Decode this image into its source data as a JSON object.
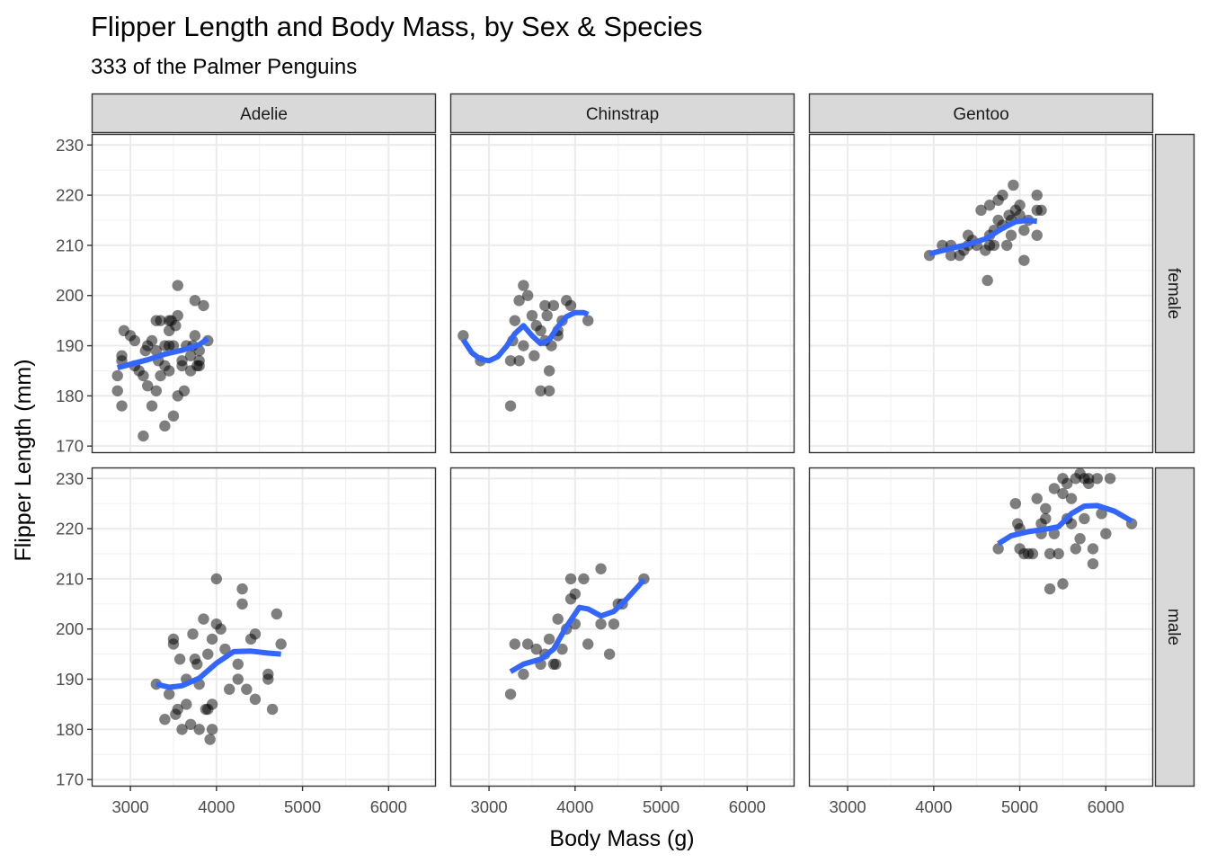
{
  "chart_data": {
    "type": "scatter",
    "title": "Flipper Length and Body Mass, by Sex & Species",
    "subtitle": "333 of the Palmer Penguins",
    "xlabel": "Body Mass (g)",
    "ylabel": "Flipper Length (mm)",
    "xlim": [
      2550,
      6550
    ],
    "ylim": [
      168.6,
      232.2
    ],
    "x_ticks": [
      3000,
      4000,
      5000,
      6000
    ],
    "y_ticks": [
      170,
      180,
      190,
      200,
      210,
      220,
      230
    ],
    "facet_columns": [
      "Adelie",
      "Chinstrap",
      "Gentoo"
    ],
    "facet_rows": [
      "female",
      "male"
    ],
    "point_color": "#000000",
    "smooth_color": "#3366ff",
    "strip_fill": "#d9d9d9",
    "grid": true,
    "panels": [
      {
        "species": "Adelie",
        "sex": "female",
        "points": [
          [
            2850,
            181
          ],
          [
            2850,
            184
          ],
          [
            2900,
            178
          ],
          [
            2900,
            188
          ],
          [
            2900,
            187
          ],
          [
            2925,
            193
          ],
          [
            3000,
            192
          ],
          [
            3050,
            191
          ],
          [
            3050,
            186
          ],
          [
            3100,
            185
          ],
          [
            3150,
            172
          ],
          [
            3150,
            184
          ],
          [
            3175,
            189
          ],
          [
            3200,
            190
          ],
          [
            3200,
            182
          ],
          [
            3250,
            191
          ],
          [
            3250,
            178
          ],
          [
            3300,
            195
          ],
          [
            3300,
            189
          ],
          [
            3300,
            181
          ],
          [
            3325,
            187
          ],
          [
            3350,
            195
          ],
          [
            3350,
            184
          ],
          [
            3400,
            186
          ],
          [
            3400,
            174
          ],
          [
            3400,
            190
          ],
          [
            3450,
            193
          ],
          [
            3450,
            185
          ],
          [
            3450,
            190
          ],
          [
            3450,
            195
          ],
          [
            3475,
            195
          ],
          [
            3500,
            176
          ],
          [
            3500,
            190
          ],
          [
            3525,
            194
          ],
          [
            3550,
            202
          ],
          [
            3550,
            180
          ],
          [
            3550,
            196
          ],
          [
            3600,
            186
          ],
          [
            3600,
            187
          ],
          [
            3625,
            181
          ],
          [
            3650,
            190
          ],
          [
            3700,
            185
          ],
          [
            3700,
            188
          ],
          [
            3725,
            190
          ],
          [
            3750,
            199
          ],
          [
            3750,
            192
          ],
          [
            3775,
            186
          ],
          [
            3800,
            187
          ],
          [
            3800,
            186
          ],
          [
            3800,
            189
          ],
          [
            3850,
            198
          ],
          [
            3900,
            191
          ]
        ],
        "smooth": [
          [
            2850,
            185.6
          ],
          [
            3000,
            186.3
          ],
          [
            3200,
            187.2
          ],
          [
            3400,
            188.3
          ],
          [
            3600,
            189.1
          ],
          [
            3800,
            190.2
          ],
          [
            3900,
            191.4
          ]
        ]
      },
      {
        "species": "Chinstrap",
        "sex": "female",
        "points": [
          [
            2700,
            192
          ],
          [
            2900,
            187
          ],
          [
            3250,
            187
          ],
          [
            3250,
            178
          ],
          [
            3275,
            191
          ],
          [
            3300,
            195
          ],
          [
            3350,
            199
          ],
          [
            3350,
            187
          ],
          [
            3400,
            202
          ],
          [
            3400,
            190
          ],
          [
            3450,
            200
          ],
          [
            3500,
            196
          ],
          [
            3525,
            188
          ],
          [
            3550,
            194
          ],
          [
            3600,
            193
          ],
          [
            3600,
            181
          ],
          [
            3650,
            191
          ],
          [
            3650,
            198
          ],
          [
            3675,
            196
          ],
          [
            3700,
            181
          ],
          [
            3700,
            185
          ],
          [
            3725,
            190
          ],
          [
            3750,
            198
          ],
          [
            3800,
            192
          ],
          [
            3800,
            193
          ],
          [
            3850,
            195
          ],
          [
            3900,
            199
          ],
          [
            3950,
            198
          ],
          [
            4150,
            195
          ]
        ],
        "smooth": [
          [
            2700,
            191.2
          ],
          [
            2800,
            188.6
          ],
          [
            2900,
            187.3
          ],
          [
            3000,
            187.0
          ],
          [
            3100,
            187.8
          ],
          [
            3200,
            189.8
          ],
          [
            3300,
            192.4
          ],
          [
            3400,
            194.0
          ],
          [
            3500,
            192.0
          ],
          [
            3600,
            190.4
          ],
          [
            3700,
            191.2
          ],
          [
            3800,
            193.8
          ],
          [
            3900,
            195.8
          ],
          [
            4000,
            196.6
          ],
          [
            4100,
            196.6
          ],
          [
            4150,
            196.2
          ]
        ]
      },
      {
        "species": "Gentoo",
        "sex": "female",
        "points": [
          [
            3950,
            208
          ],
          [
            4100,
            210
          ],
          [
            4200,
            210
          ],
          [
            4200,
            208
          ],
          [
            4300,
            208
          ],
          [
            4350,
            209
          ],
          [
            4400,
            210
          ],
          [
            4400,
            212
          ],
          [
            4450,
            211
          ],
          [
            4500,
            210
          ],
          [
            4550,
            217
          ],
          [
            4600,
            209
          ],
          [
            4625,
            203
          ],
          [
            4650,
            210
          ],
          [
            4650,
            212
          ],
          [
            4650,
            218
          ],
          [
            4700,
            210
          ],
          [
            4700,
            213
          ],
          [
            4750,
            215
          ],
          [
            4750,
            219
          ],
          [
            4800,
            220
          ],
          [
            4800,
            214
          ],
          [
            4850,
            210
          ],
          [
            4875,
            216
          ],
          [
            4900,
            212
          ],
          [
            4900,
            215
          ],
          [
            4925,
            222
          ],
          [
            4950,
            217
          ],
          [
            5000,
            216
          ],
          [
            5000,
            218
          ],
          [
            5050,
            213
          ],
          [
            5050,
            207
          ],
          [
            5100,
            215
          ],
          [
            5200,
            217
          ],
          [
            5200,
            212
          ],
          [
            5200,
            220
          ],
          [
            5250,
            217
          ]
        ],
        "smooth": [
          [
            3950,
            208.3
          ],
          [
            4200,
            209.4
          ],
          [
            4400,
            210.2
          ],
          [
            4600,
            211.3
          ],
          [
            4800,
            213.4
          ],
          [
            4950,
            214.7
          ],
          [
            5100,
            215.0
          ],
          [
            5200,
            214.8
          ]
        ]
      },
      {
        "species": "Adelie",
        "sex": "male",
        "points": [
          [
            3300,
            189
          ],
          [
            3400,
            182
          ],
          [
            3450,
            187
          ],
          [
            3500,
            197
          ],
          [
            3500,
            198
          ],
          [
            3525,
            183
          ],
          [
            3550,
            184
          ],
          [
            3575,
            194
          ],
          [
            3600,
            180
          ],
          [
            3650,
            185
          ],
          [
            3650,
            190
          ],
          [
            3700,
            181
          ],
          [
            3725,
            199
          ],
          [
            3750,
            194
          ],
          [
            3775,
            193
          ],
          [
            3800,
            180
          ],
          [
            3800,
            189
          ],
          [
            3850,
            202
          ],
          [
            3875,
            184
          ],
          [
            3900,
            195
          ],
          [
            3900,
            184
          ],
          [
            3925,
            178
          ],
          [
            3950,
            180
          ],
          [
            3950,
            185
          ],
          [
            3950,
            198
          ],
          [
            4000,
            210
          ],
          [
            4000,
            201
          ],
          [
            4050,
            200
          ],
          [
            4100,
            196
          ],
          [
            4150,
            188
          ],
          [
            4250,
            193
          ],
          [
            4250,
            190
          ],
          [
            4300,
            208
          ],
          [
            4300,
            205
          ],
          [
            4350,
            188
          ],
          [
            4400,
            198
          ],
          [
            4450,
            199
          ],
          [
            4450,
            186
          ],
          [
            4600,
            190
          ],
          [
            4600,
            191
          ],
          [
            4650,
            184
          ],
          [
            4700,
            203
          ],
          [
            4750,
            197
          ]
        ],
        "smooth": [
          [
            3300,
            189.0
          ],
          [
            3450,
            188.4
          ],
          [
            3600,
            188.7
          ],
          [
            3800,
            190.2
          ],
          [
            4000,
            193.2
          ],
          [
            4200,
            195.5
          ],
          [
            4400,
            195.6
          ],
          [
            4600,
            195.2
          ],
          [
            4750,
            195.0
          ]
        ]
      },
      {
        "species": "Chinstrap",
        "sex": "male",
        "points": [
          [
            3250,
            187
          ],
          [
            3300,
            197
          ],
          [
            3400,
            191
          ],
          [
            3450,
            197
          ],
          [
            3550,
            196
          ],
          [
            3600,
            193
          ],
          [
            3650,
            195
          ],
          [
            3700,
            198
          ],
          [
            3750,
            193
          ],
          [
            3775,
            193
          ],
          [
            3800,
            202
          ],
          [
            3850,
            196
          ],
          [
            3900,
            200
          ],
          [
            3950,
            206
          ],
          [
            3950,
            210
          ],
          [
            4000,
            207
          ],
          [
            4000,
            201
          ],
          [
            4100,
            210
          ],
          [
            4150,
            197
          ],
          [
            4300,
            212
          ],
          [
            4300,
            201
          ],
          [
            4400,
            195
          ],
          [
            4450,
            201
          ],
          [
            4500,
            205
          ],
          [
            4550,
            205
          ],
          [
            4800,
            210
          ]
        ],
        "smooth": [
          [
            3250,
            191.5
          ],
          [
            3400,
            193.0
          ],
          [
            3600,
            194.0
          ],
          [
            3750,
            196.0
          ],
          [
            3900,
            200.5
          ],
          [
            4050,
            204.3
          ],
          [
            4150,
            204.0
          ],
          [
            4300,
            202.6
          ],
          [
            4450,
            203.5
          ],
          [
            4600,
            206.0
          ],
          [
            4800,
            209.8
          ]
        ]
      },
      {
        "species": "Gentoo",
        "sex": "male",
        "points": [
          [
            4750,
            216
          ],
          [
            4950,
            225
          ],
          [
            4975,
            221
          ],
          [
            5000,
            220
          ],
          [
            5000,
            216
          ],
          [
            5050,
            215
          ],
          [
            5100,
            215
          ],
          [
            5150,
            215
          ],
          [
            5200,
            226
          ],
          [
            5250,
            221
          ],
          [
            5250,
            219
          ],
          [
            5300,
            224
          ],
          [
            5300,
            222
          ],
          [
            5350,
            215
          ],
          [
            5350,
            208
          ],
          [
            5400,
            228
          ],
          [
            5400,
            219
          ],
          [
            5450,
            215
          ],
          [
            5500,
            230
          ],
          [
            5500,
            227
          ],
          [
            5500,
            209
          ],
          [
            5550,
            229
          ],
          [
            5550,
            222
          ],
          [
            5600,
            226
          ],
          [
            5600,
            221
          ],
          [
            5650,
            230
          ],
          [
            5650,
            216
          ],
          [
            5700,
            231
          ],
          [
            5700,
            218
          ],
          [
            5750,
            230
          ],
          [
            5750,
            222
          ],
          [
            5800,
            229
          ],
          [
            5800,
            230
          ],
          [
            5850,
            213
          ],
          [
            5850,
            216
          ],
          [
            5900,
            230
          ],
          [
            5950,
            223
          ],
          [
            6000,
            219
          ],
          [
            6050,
            230
          ],
          [
            6300,
            221
          ]
        ],
        "smooth": [
          [
            4750,
            217.0
          ],
          [
            4900,
            218.6
          ],
          [
            5100,
            219.4
          ],
          [
            5300,
            219.9
          ],
          [
            5450,
            220.4
          ],
          [
            5600,
            223.0
          ],
          [
            5750,
            224.5
          ],
          [
            5900,
            224.6
          ],
          [
            6100,
            223.5
          ],
          [
            6300,
            221.5
          ]
        ]
      }
    ]
  }
}
